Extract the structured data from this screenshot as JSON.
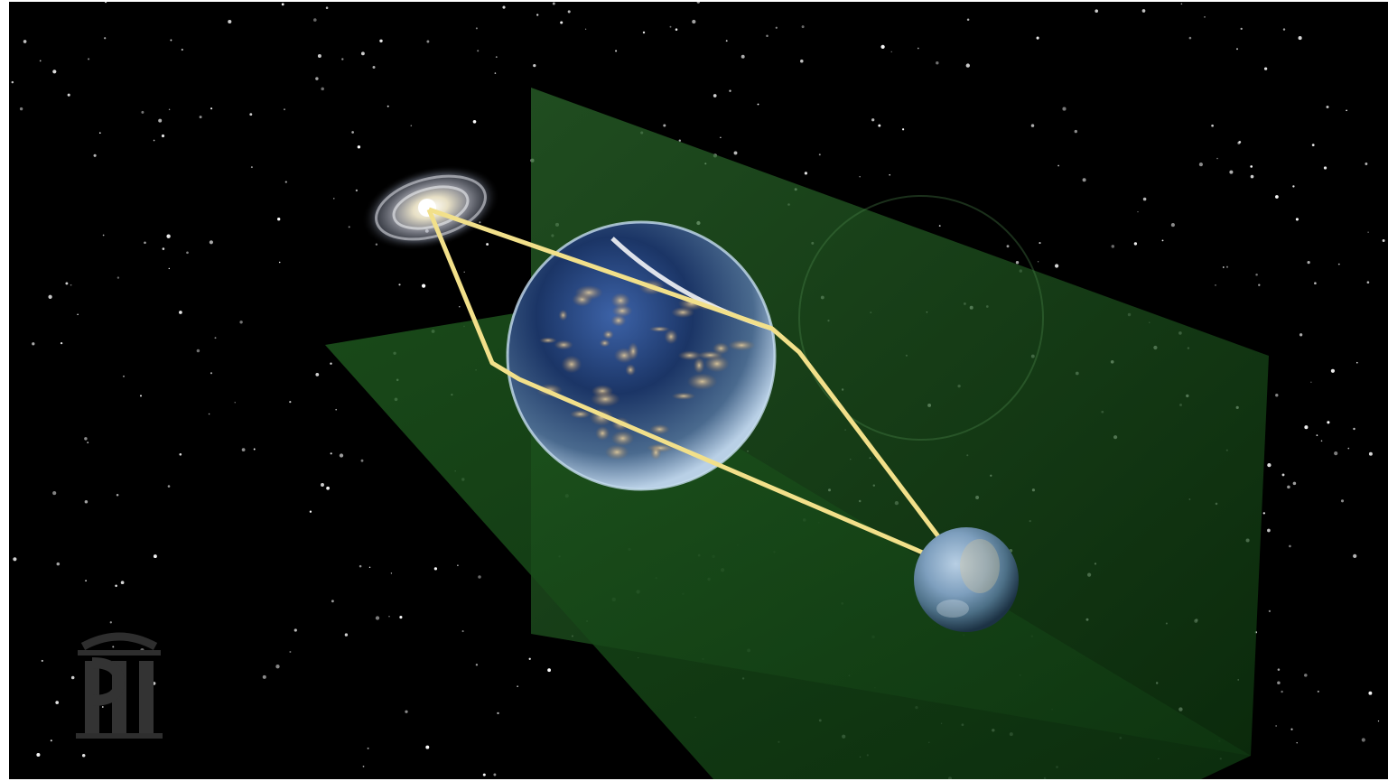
{
  "scene": {
    "description_name": "gravitational-lensing-illustration",
    "background_color": "#000000",
    "plane_color": "#1f5a1f",
    "light_path_color": "#f2e08a"
  },
  "logo": {
    "text": "PI",
    "color": "#3a3a3a"
  }
}
